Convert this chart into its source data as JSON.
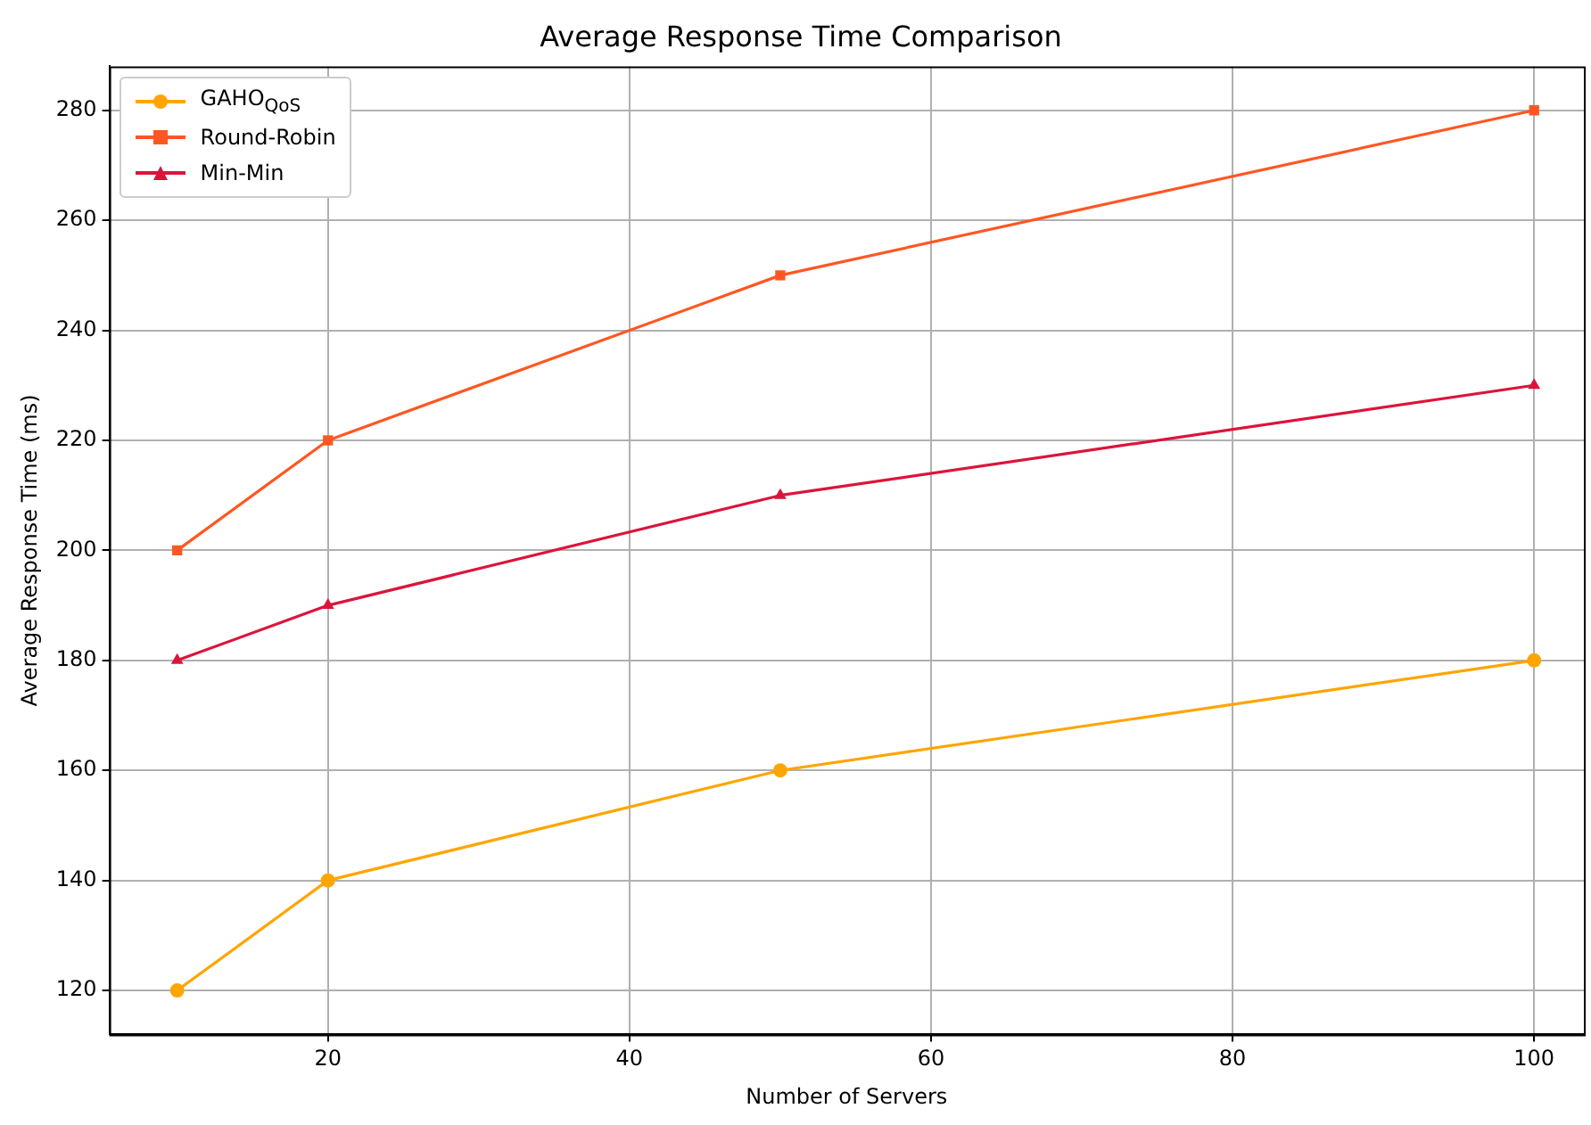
{
  "chart_data": {
    "type": "line",
    "title": "Average Response Time Comparison",
    "xlabel": "Number of Servers",
    "ylabel": "Average Response Time (ms)",
    "x": [
      10,
      20,
      50,
      100
    ],
    "series": [
      {
        "name": "GAHO$_{QoS}$",
        "color": "#ffa500",
        "marker": "circle",
        "values": [
          120,
          140,
          160,
          180
        ]
      },
      {
        "name": "Round-Robin",
        "color": "#ff5722",
        "marker": "square",
        "values": [
          200,
          220,
          250,
          280
        ]
      },
      {
        "name": "Min-Min",
        "color": "#dc143c",
        "marker": "triangle",
        "values": [
          180,
          190,
          210,
          230
        ]
      }
    ],
    "xlim": [
      5.5,
      103.3
    ],
    "xticks": [
      20,
      40,
      60,
      80,
      100
    ],
    "ylim": [
      112,
      288
    ],
    "yticks": [
      120,
      140,
      160,
      180,
      200,
      220,
      240,
      260,
      280
    ],
    "grid": true,
    "legend": "top left"
  }
}
